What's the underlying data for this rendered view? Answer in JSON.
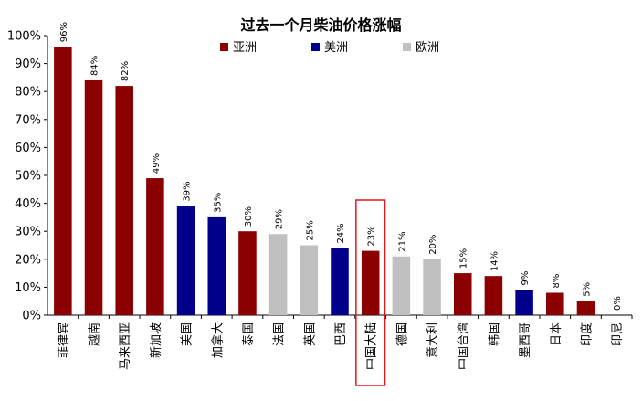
{
  "chart_data": {
    "type": "bar",
    "title": "过去一个月柴油价格涨幅",
    "xlabel": "",
    "ylabel": "",
    "ylim": [
      0,
      100
    ],
    "yticks": [
      "0%",
      "10%",
      "20%",
      "30%",
      "40%",
      "50%",
      "60%",
      "70%",
      "80%",
      "90%",
      "100%"
    ],
    "grid": false,
    "legend_position": "top",
    "legend": [
      {
        "name": "亚洲",
        "color": "#8B0000"
      },
      {
        "name": "美洲",
        "color": "#00008B"
      },
      {
        "name": "欧洲",
        "color": "#C0C0C0"
      }
    ],
    "categories": [
      "菲律宾",
      "越南",
      "马来西亚",
      "新加坡",
      "美国",
      "加拿大",
      "泰国",
      "法国",
      "英国",
      "巴西",
      "中国大陆",
      "德国",
      "意大利",
      "中国台湾",
      "韩国",
      "墨西哥",
      "日本",
      "印度",
      "印尼"
    ],
    "values": [
      96,
      84,
      82,
      49,
      39,
      35,
      30,
      29,
      25,
      24,
      23,
      21,
      20,
      15,
      14,
      9,
      8,
      5,
      0
    ],
    "value_labels": [
      "96%",
      "84%",
      "82%",
      "49%",
      "39%",
      "35%",
      "30%",
      "29%",
      "25%",
      "24%",
      "23%",
      "21%",
      "20%",
      "15%",
      "14%",
      "9%",
      "8%",
      "5%",
      "0%"
    ],
    "regions": [
      "亚洲",
      "亚洲",
      "亚洲",
      "亚洲",
      "美洲",
      "美洲",
      "亚洲",
      "欧洲",
      "欧洲",
      "美洲",
      "亚洲",
      "欧洲",
      "欧洲",
      "亚洲",
      "亚洲",
      "美洲",
      "亚洲",
      "亚洲",
      "亚洲"
    ],
    "highlighted_category": "中国大陆",
    "highlight_color": "#E8141B"
  }
}
